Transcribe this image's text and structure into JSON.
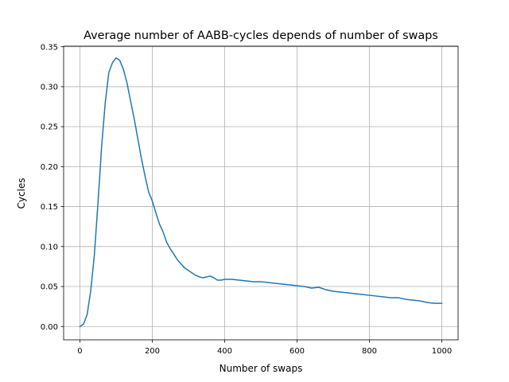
{
  "chart_data": {
    "type": "line",
    "title": "Average number of AABB-cycles depends of number of swaps",
    "xlabel": "Number of swaps",
    "ylabel": "Cycles",
    "xlim": [
      -45,
      1045
    ],
    "ylim": [
      -0.0167,
      0.3507
    ],
    "xticks": [
      0,
      200,
      400,
      600,
      800,
      1000
    ],
    "xtick_labels": [
      "0",
      "200",
      "400",
      "600",
      "800",
      "1000"
    ],
    "yticks": [
      0.0,
      0.05,
      0.1,
      0.15,
      0.2,
      0.25,
      0.3,
      0.35
    ],
    "ytick_labels": [
      "0.00",
      "0.05",
      "0.10",
      "0.15",
      "0.20",
      "0.25",
      "0.30",
      "0.35"
    ],
    "grid": true,
    "colors": {
      "line": "#1f77b4",
      "grid": "#b0b0b0",
      "axes": "#000000"
    },
    "series": [
      {
        "x": [
          0,
          10,
          20,
          30,
          40,
          50,
          60,
          70,
          80,
          90,
          100,
          110,
          120,
          130,
          140,
          150,
          160,
          170,
          180,
          190,
          200,
          210,
          220,
          230,
          240,
          250,
          260,
          270,
          280,
          290,
          300,
          310,
          320,
          330,
          340,
          350,
          360,
          370,
          380,
          390,
          400,
          420,
          440,
          460,
          480,
          500,
          520,
          540,
          560,
          580,
          600,
          620,
          640,
          660,
          680,
          700,
          720,
          740,
          760,
          780,
          800,
          820,
          840,
          860,
          880,
          900,
          920,
          940,
          960,
          980,
          1000
        ],
        "y": [
          0.0,
          0.003,
          0.015,
          0.045,
          0.09,
          0.155,
          0.225,
          0.28,
          0.318,
          0.33,
          0.336,
          0.333,
          0.322,
          0.305,
          0.282,
          0.26,
          0.235,
          0.21,
          0.188,
          0.168,
          0.157,
          0.142,
          0.128,
          0.118,
          0.105,
          0.097,
          0.09,
          0.083,
          0.078,
          0.073,
          0.07,
          0.067,
          0.064,
          0.062,
          0.061,
          0.062,
          0.063,
          0.061,
          0.058,
          0.058,
          0.059,
          0.059,
          0.058,
          0.057,
          0.056,
          0.056,
          0.055,
          0.054,
          0.053,
          0.052,
          0.051,
          0.05,
          0.048,
          0.049,
          0.046,
          0.044,
          0.043,
          0.042,
          0.041,
          0.04,
          0.039,
          0.038,
          0.037,
          0.036,
          0.036,
          0.034,
          0.033,
          0.032,
          0.03,
          0.029,
          0.029
        ]
      }
    ]
  }
}
